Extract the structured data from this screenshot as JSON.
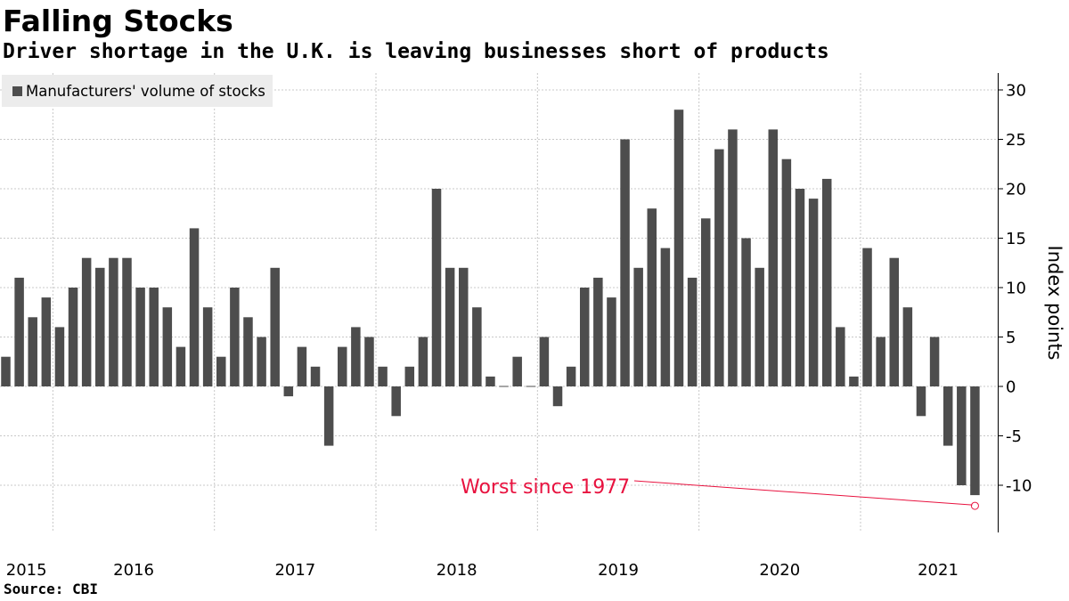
{
  "header": {
    "title": "Falling Stocks",
    "subtitle": "Driver shortage in the U.K. is leaving businesses short of products"
  },
  "footer": {
    "source": "Source: CBI"
  },
  "colors": {
    "bar": "#4d4d4d",
    "grid": "#c8c8c8",
    "annotation": "#e8123f",
    "legend_bg": "#ececec"
  },
  "chart_data": {
    "type": "bar",
    "title": "Falling Stocks",
    "subtitle": "Driver shortage in the U.K. is leaving businesses short of products",
    "legend": [
      "Manufacturers' volume of stocks"
    ],
    "legend_position": "top-left",
    "xlabel": "",
    "ylabel": "Index points",
    "ylim": [
      -15,
      32
    ],
    "yticks": [
      -10,
      -5,
      0,
      5,
      10,
      15,
      20,
      25,
      30
    ],
    "ytick_labels": [
      "-10",
      "-5",
      "0",
      "5",
      "10",
      "15",
      "20",
      "25",
      "30"
    ],
    "xtick_labels": [
      "2015",
      "2016",
      "2017",
      "2018",
      "2019",
      "2020",
      "2021"
    ],
    "year_start_index": [
      0,
      4,
      16,
      28,
      40,
      52,
      64
    ],
    "grid": true,
    "series": [
      {
        "name": "Manufacturers' volume of stocks",
        "start": "2014-10",
        "frequency": "monthly",
        "values": [
          3,
          11,
          7,
          9,
          6,
          10,
          13,
          12,
          13,
          13,
          10,
          10,
          8,
          4,
          16,
          8,
          3,
          10,
          7,
          5,
          12,
          -1,
          4,
          2,
          -6,
          4,
          6,
          5,
          2,
          -3,
          2,
          5,
          20,
          12,
          12,
          8,
          1,
          0,
          3,
          0,
          5,
          -2,
          2,
          10,
          11,
          9,
          25,
          12,
          18,
          14,
          28,
          11,
          17,
          24,
          26,
          15,
          12,
          26,
          23,
          20,
          19,
          21,
          6,
          1,
          14,
          5,
          13,
          8,
          -3,
          5,
          -6,
          -10,
          -11
        ]
      }
    ],
    "annotations": [
      {
        "text": "Worst since 1977",
        "target_index": 72,
        "target_value": -11
      }
    ]
  }
}
